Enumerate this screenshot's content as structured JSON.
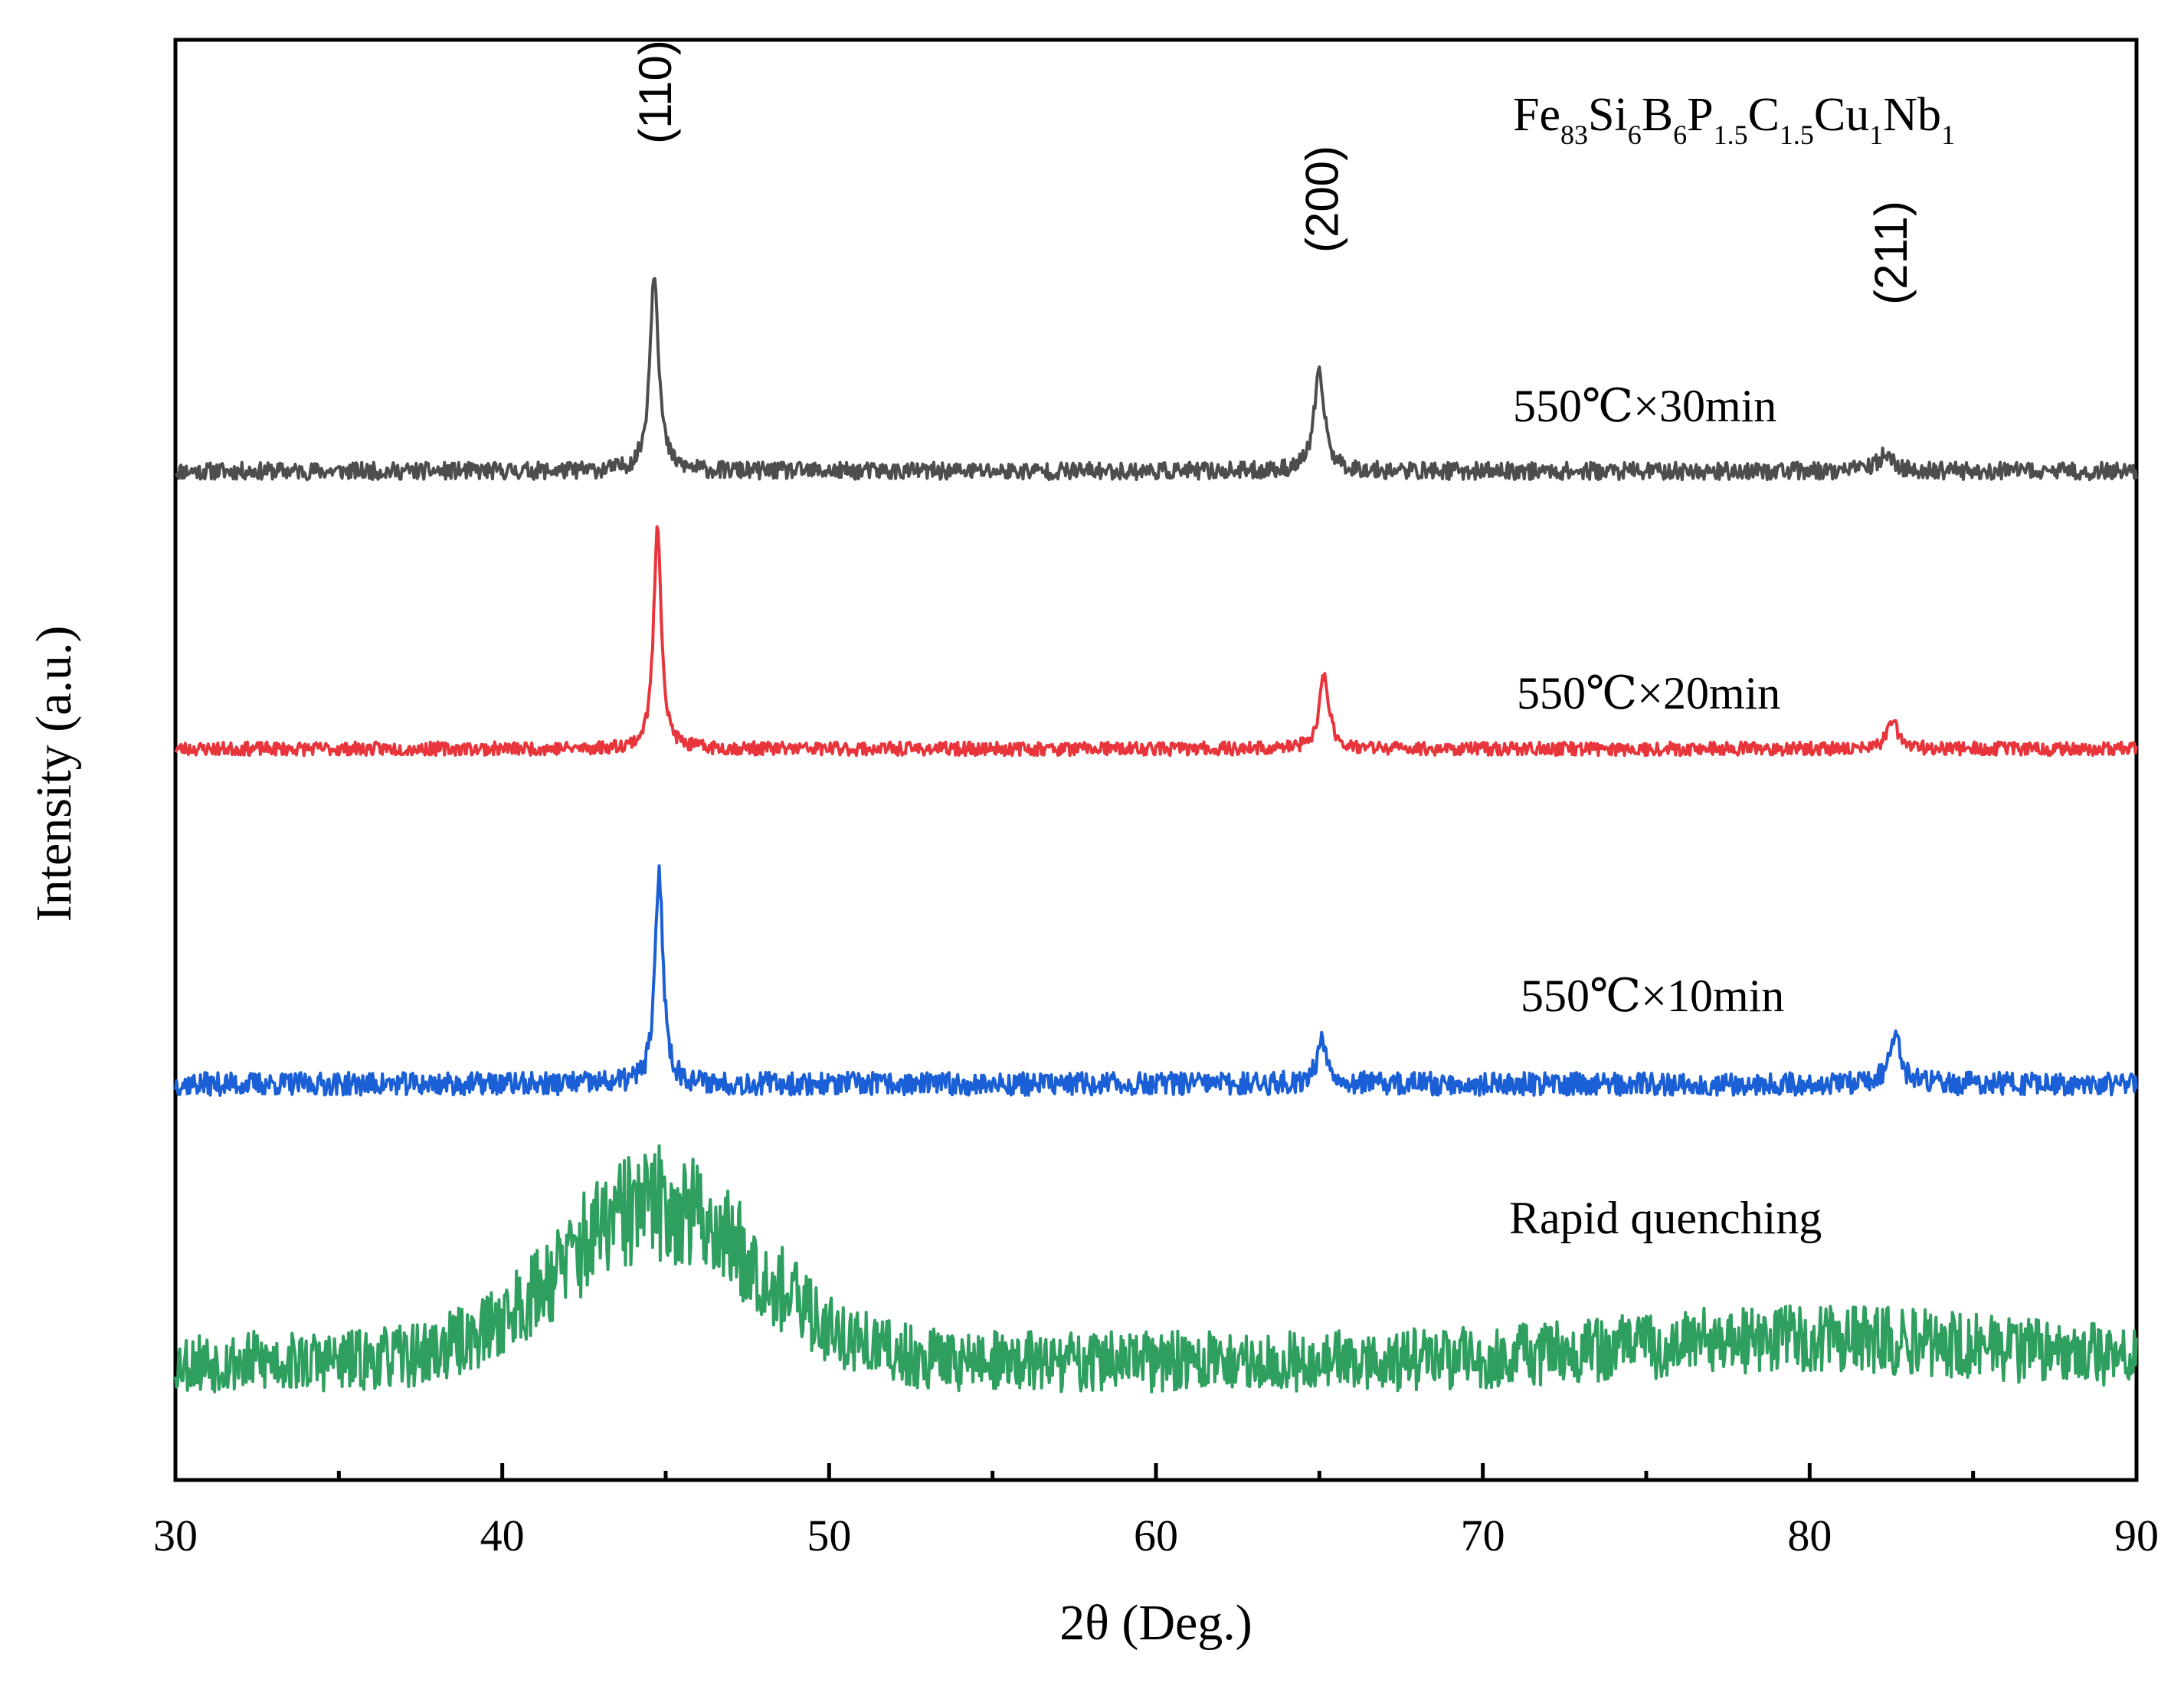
{
  "chart_data": {
    "type": "line",
    "title": "",
    "composition": {
      "elements": [
        "Fe",
        "Si",
        "B",
        "P",
        "C",
        "Cu",
        "Nb"
      ],
      "subscripts": [
        "83",
        "6",
        "6",
        "1.5",
        "1.5",
        "1",
        "1"
      ]
    },
    "xlabel": "2θ (Deg.)",
    "ylabel": "Intensity (a.u.)",
    "xlim": [
      30,
      90
    ],
    "xticks": [
      30,
      40,
      50,
      60,
      70,
      80,
      90
    ],
    "xticks_minor": [
      35,
      45,
      55,
      65,
      75,
      85
    ],
    "yticks": [],
    "grid": false,
    "legend": "none (labels placed beside each curve)",
    "peaks": [
      {
        "label": "(110)",
        "x": 44.7
      },
      {
        "label": "(200)",
        "x": 65.1
      },
      {
        "label": "(211)",
        "x": 82.5
      }
    ],
    "series": [
      {
        "name": "550℃×30min",
        "color": "#4d4d4d",
        "baseline": 0.0,
        "noise": 0.045,
        "seed": 11,
        "humps": [],
        "peaks": [
          {
            "x": 44.65,
            "height": 1.05,
            "width": 0.16
          },
          {
            "x": 65.0,
            "height": 0.5,
            "width": 0.2
          },
          {
            "x": 82.3,
            "height": 0.08,
            "width": 0.3
          }
        ]
      },
      {
        "name": "550℃×20min",
        "color": "#e8353b",
        "baseline": -1.45,
        "noise": 0.035,
        "seed": 23,
        "humps": [],
        "peaks": [
          {
            "x": 44.75,
            "height": 1.18,
            "width": 0.14
          },
          {
            "x": 65.15,
            "height": 0.38,
            "width": 0.18
          },
          {
            "x": 82.55,
            "height": 0.13,
            "width": 0.22
          }
        ]
      },
      {
        "name": "550℃×10min",
        "color": "#1a5fd6",
        "baseline": -3.2,
        "noise": 0.06,
        "seed": 37,
        "humps": [],
        "peaks": [
          {
            "x": 44.8,
            "height": 1.1,
            "width": 0.15
          },
          {
            "x": 65.1,
            "height": 0.23,
            "width": 0.2
          },
          {
            "x": 82.6,
            "height": 0.27,
            "width": 0.2
          }
        ]
      },
      {
        "name": "Rapid quenching",
        "color": "#2e9f5e",
        "baseline": -4.65,
        "noise": 0.16,
        "seed": 53,
        "humps": [
          {
            "x": 44.8,
            "height": 0.82,
            "width": 3.0
          },
          {
            "x": 80.0,
            "height": 0.12,
            "width": 5.5
          }
        ],
        "peaks": []
      }
    ]
  }
}
